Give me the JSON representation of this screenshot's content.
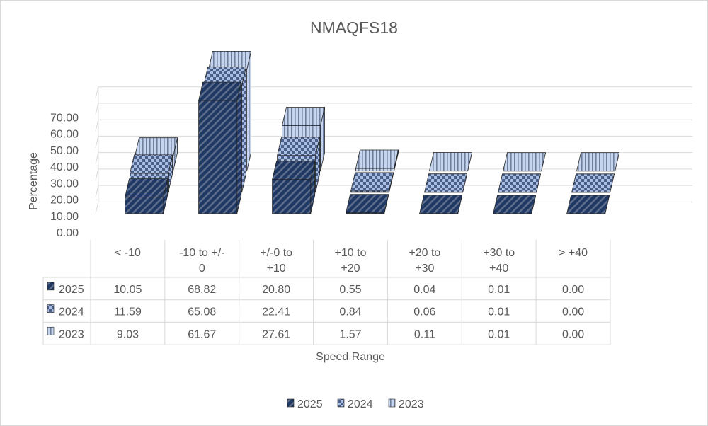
{
  "chart_data": {
    "type": "bar",
    "subtype": "3d-column-with-data-table",
    "title": "NMAQFS18",
    "xlabel": "Speed Range",
    "ylabel": "Percentage",
    "ylim": [
      0,
      70
    ],
    "ytick_labels": [
      "0.00",
      "10.00",
      "20.00",
      "30.00",
      "40.00",
      "50.00",
      "60.00",
      "70.00"
    ],
    "grid": true,
    "legend_position": "bottom",
    "categories": [
      "< -10",
      "-10 to +/- 0",
      "+/-0 to +10",
      "+10 to +20",
      "+20 to +30",
      "+30 to +40",
      "> +40"
    ],
    "category_lines": [
      [
        "< -10"
      ],
      [
        "-10 to +/-",
        "0"
      ],
      [
        "+/-0 to",
        "+10"
      ],
      [
        "+10 to",
        "+20"
      ],
      [
        "+20 to",
        "+30"
      ],
      [
        "+30 to",
        "+40"
      ],
      [
        "> +40"
      ]
    ],
    "series": [
      {
        "name": "2025",
        "pattern": "diagonal",
        "color": "#1f3864",
        "values": [
          10.05,
          68.82,
          20.8,
          0.55,
          0.04,
          0.01,
          0.0
        ],
        "labels": [
          "10.05",
          "68.82",
          "20.80",
          "0.55",
          "0.04",
          "0.01",
          "0.00"
        ]
      },
      {
        "name": "2024",
        "pattern": "checker",
        "color": "#5b7bb6",
        "values": [
          11.59,
          65.08,
          22.41,
          0.84,
          0.06,
          0.01,
          0.0
        ],
        "labels": [
          "11.59",
          "65.08",
          "22.41",
          "0.84",
          "0.06",
          "0.01",
          "0.00"
        ]
      },
      {
        "name": "2023",
        "pattern": "vertical",
        "color": "#b4c7e7",
        "values": [
          9.03,
          61.67,
          27.61,
          1.57,
          0.11,
          0.01,
          0.0
        ],
        "labels": [
          "9.03",
          "61.67",
          "27.61",
          "1.57",
          "0.11",
          "0.01",
          "0.00"
        ]
      }
    ]
  }
}
